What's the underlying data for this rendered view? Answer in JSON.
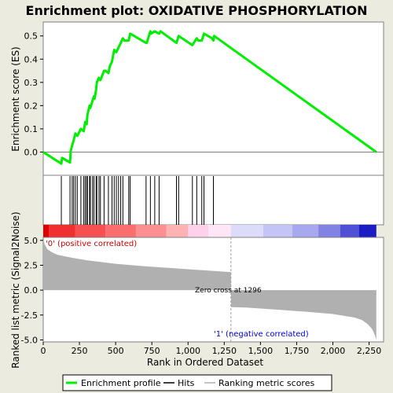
{
  "chart_data": {
    "type": "line",
    "title": "Enrichment plot: OXIDATIVE PHOSPHORYLATION",
    "xlabel": "Rank in Ordered Dataset",
    "es_ylabel": "Enrichment score (ES)",
    "metric_ylabel": "Ranked list metric (Signal2Noise)",
    "x_ticks": [
      0,
      250,
      500,
      750,
      1000,
      1250,
      1500,
      1750,
      2000,
      2250
    ],
    "x_tick_labels": [
      "0",
      "250",
      "500",
      "750",
      "1,000",
      "1,250",
      "1,500",
      "1,750",
      "2,000",
      "2,250"
    ],
    "xlim": [
      0,
      2350
    ],
    "es_ylim": [
      -0.1,
      0.56
    ],
    "es_ticks": [
      0.0,
      0.1,
      0.2,
      0.3,
      0.4,
      0.5
    ],
    "es_tick_labels": [
      "0.0",
      "0.1",
      "0.2",
      "0.3",
      "0.4",
      "0.5"
    ],
    "metric_ylim": [
      -5.2,
      5.3
    ],
    "metric_ticks": [
      -5.0,
      -2.5,
      0.0,
      2.5,
      5.0
    ],
    "metric_tick_labels": [
      "-5.0",
      "-2.5",
      "0.0",
      "2.5",
      "5.0"
    ],
    "zero_cross_rank": 1296,
    "zero_cross_label": "Zero cross at 1296",
    "positive_label": "'0' (positive correlated)",
    "negative_label": "'1' (negative correlated)",
    "legend": [
      "Enrichment profile",
      "Hits",
      "Ranking metric scores"
    ],
    "enrichment_profile": {
      "x": [
        0,
        125,
        130,
        185,
        190,
        200,
        210,
        222,
        235,
        260,
        280,
        290,
        300,
        305,
        320,
        325,
        340,
        350,
        355,
        365,
        370,
        385,
        395,
        420,
        430,
        450,
        460,
        475,
        490,
        505,
        520,
        535,
        550,
        560,
        590,
        600,
        710,
        715,
        740,
        745,
        770,
        800,
        810,
        920,
        935,
        1030,
        1040,
        1060,
        1070,
        1080,
        1095,
        1110,
        1165,
        1175,
        1180,
        2300
      ],
      "y": [
        0.0,
        -0.05,
        -0.025,
        -0.045,
        0.005,
        0.03,
        0.05,
        0.08,
        0.07,
        0.1,
        0.09,
        0.13,
        0.12,
        0.16,
        0.2,
        0.19,
        0.22,
        0.24,
        0.23,
        0.27,
        0.3,
        0.32,
        0.31,
        0.35,
        0.35,
        0.34,
        0.37,
        0.39,
        0.44,
        0.43,
        0.45,
        0.47,
        0.49,
        0.48,
        0.48,
        0.51,
        0.47,
        0.47,
        0.52,
        0.51,
        0.52,
        0.51,
        0.52,
        0.47,
        0.5,
        0.46,
        0.47,
        0.49,
        0.48,
        0.48,
        0.48,
        0.51,
        0.49,
        0.48,
        0.5,
        0.0
      ]
    },
    "hits": [
      125,
      185,
      200,
      210,
      222,
      235,
      260,
      280,
      290,
      300,
      305,
      320,
      325,
      340,
      350,
      365,
      370,
      385,
      395,
      420,
      450,
      475,
      490,
      505,
      520,
      535,
      550,
      590,
      600,
      710,
      740,
      770,
      800,
      920,
      935,
      1030,
      1060,
      1095,
      1110,
      1175
    ],
    "metric_curve": {
      "x": [
        0,
        10,
        30,
        60,
        100,
        200,
        300,
        500,
        700,
        900,
        1100,
        1296,
        1297,
        1400,
        1600,
        1800,
        2000,
        2150,
        2200,
        2240,
        2270,
        2290,
        2300
      ],
      "y": [
        5.1,
        4.6,
        4.1,
        3.8,
        3.55,
        3.25,
        3.0,
        2.65,
        2.4,
        2.2,
        2.0,
        1.8,
        -1.7,
        -1.75,
        -1.95,
        -2.15,
        -2.4,
        -2.75,
        -3.0,
        -3.4,
        -3.9,
        -4.5,
        -5.0
      ]
    },
    "colors": {
      "enrichment_line": "#00ee00",
      "hits": "#000000",
      "metric_fill": "#b0b0b0",
      "zero_cross_line": "#a0a0a0",
      "positive_label": "#cc0000",
      "negative_label": "#0000cc",
      "plot_background": "#ffffff",
      "page_background": "#ecebdf"
    },
    "color_bar": [
      {
        "from": 0,
        "to": 40,
        "color": "#e00000"
      },
      {
        "from": 40,
        "to": 220,
        "color": "#f03030"
      },
      {
        "from": 220,
        "to": 430,
        "color": "#f65050"
      },
      {
        "from": 430,
        "to": 640,
        "color": "#fa6e6e"
      },
      {
        "from": 640,
        "to": 850,
        "color": "#fc9090"
      },
      {
        "from": 850,
        "to": 1000,
        "color": "#feb2b2"
      },
      {
        "from": 1000,
        "to": 1140,
        "color": "#ffd0ea"
      },
      {
        "from": 1140,
        "to": 1296,
        "color": "#ffe6f6"
      },
      {
        "from": 1296,
        "to": 1520,
        "color": "#dcdcfa"
      },
      {
        "from": 1520,
        "to": 1720,
        "color": "#c4c4f6"
      },
      {
        "from": 1720,
        "to": 1900,
        "color": "#a8a8ee"
      },
      {
        "from": 1900,
        "to": 2050,
        "color": "#8282e4"
      },
      {
        "from": 2050,
        "to": 2180,
        "color": "#5050d6"
      },
      {
        "from": 2180,
        "to": 2300,
        "color": "#1c1cc4"
      }
    ]
  }
}
